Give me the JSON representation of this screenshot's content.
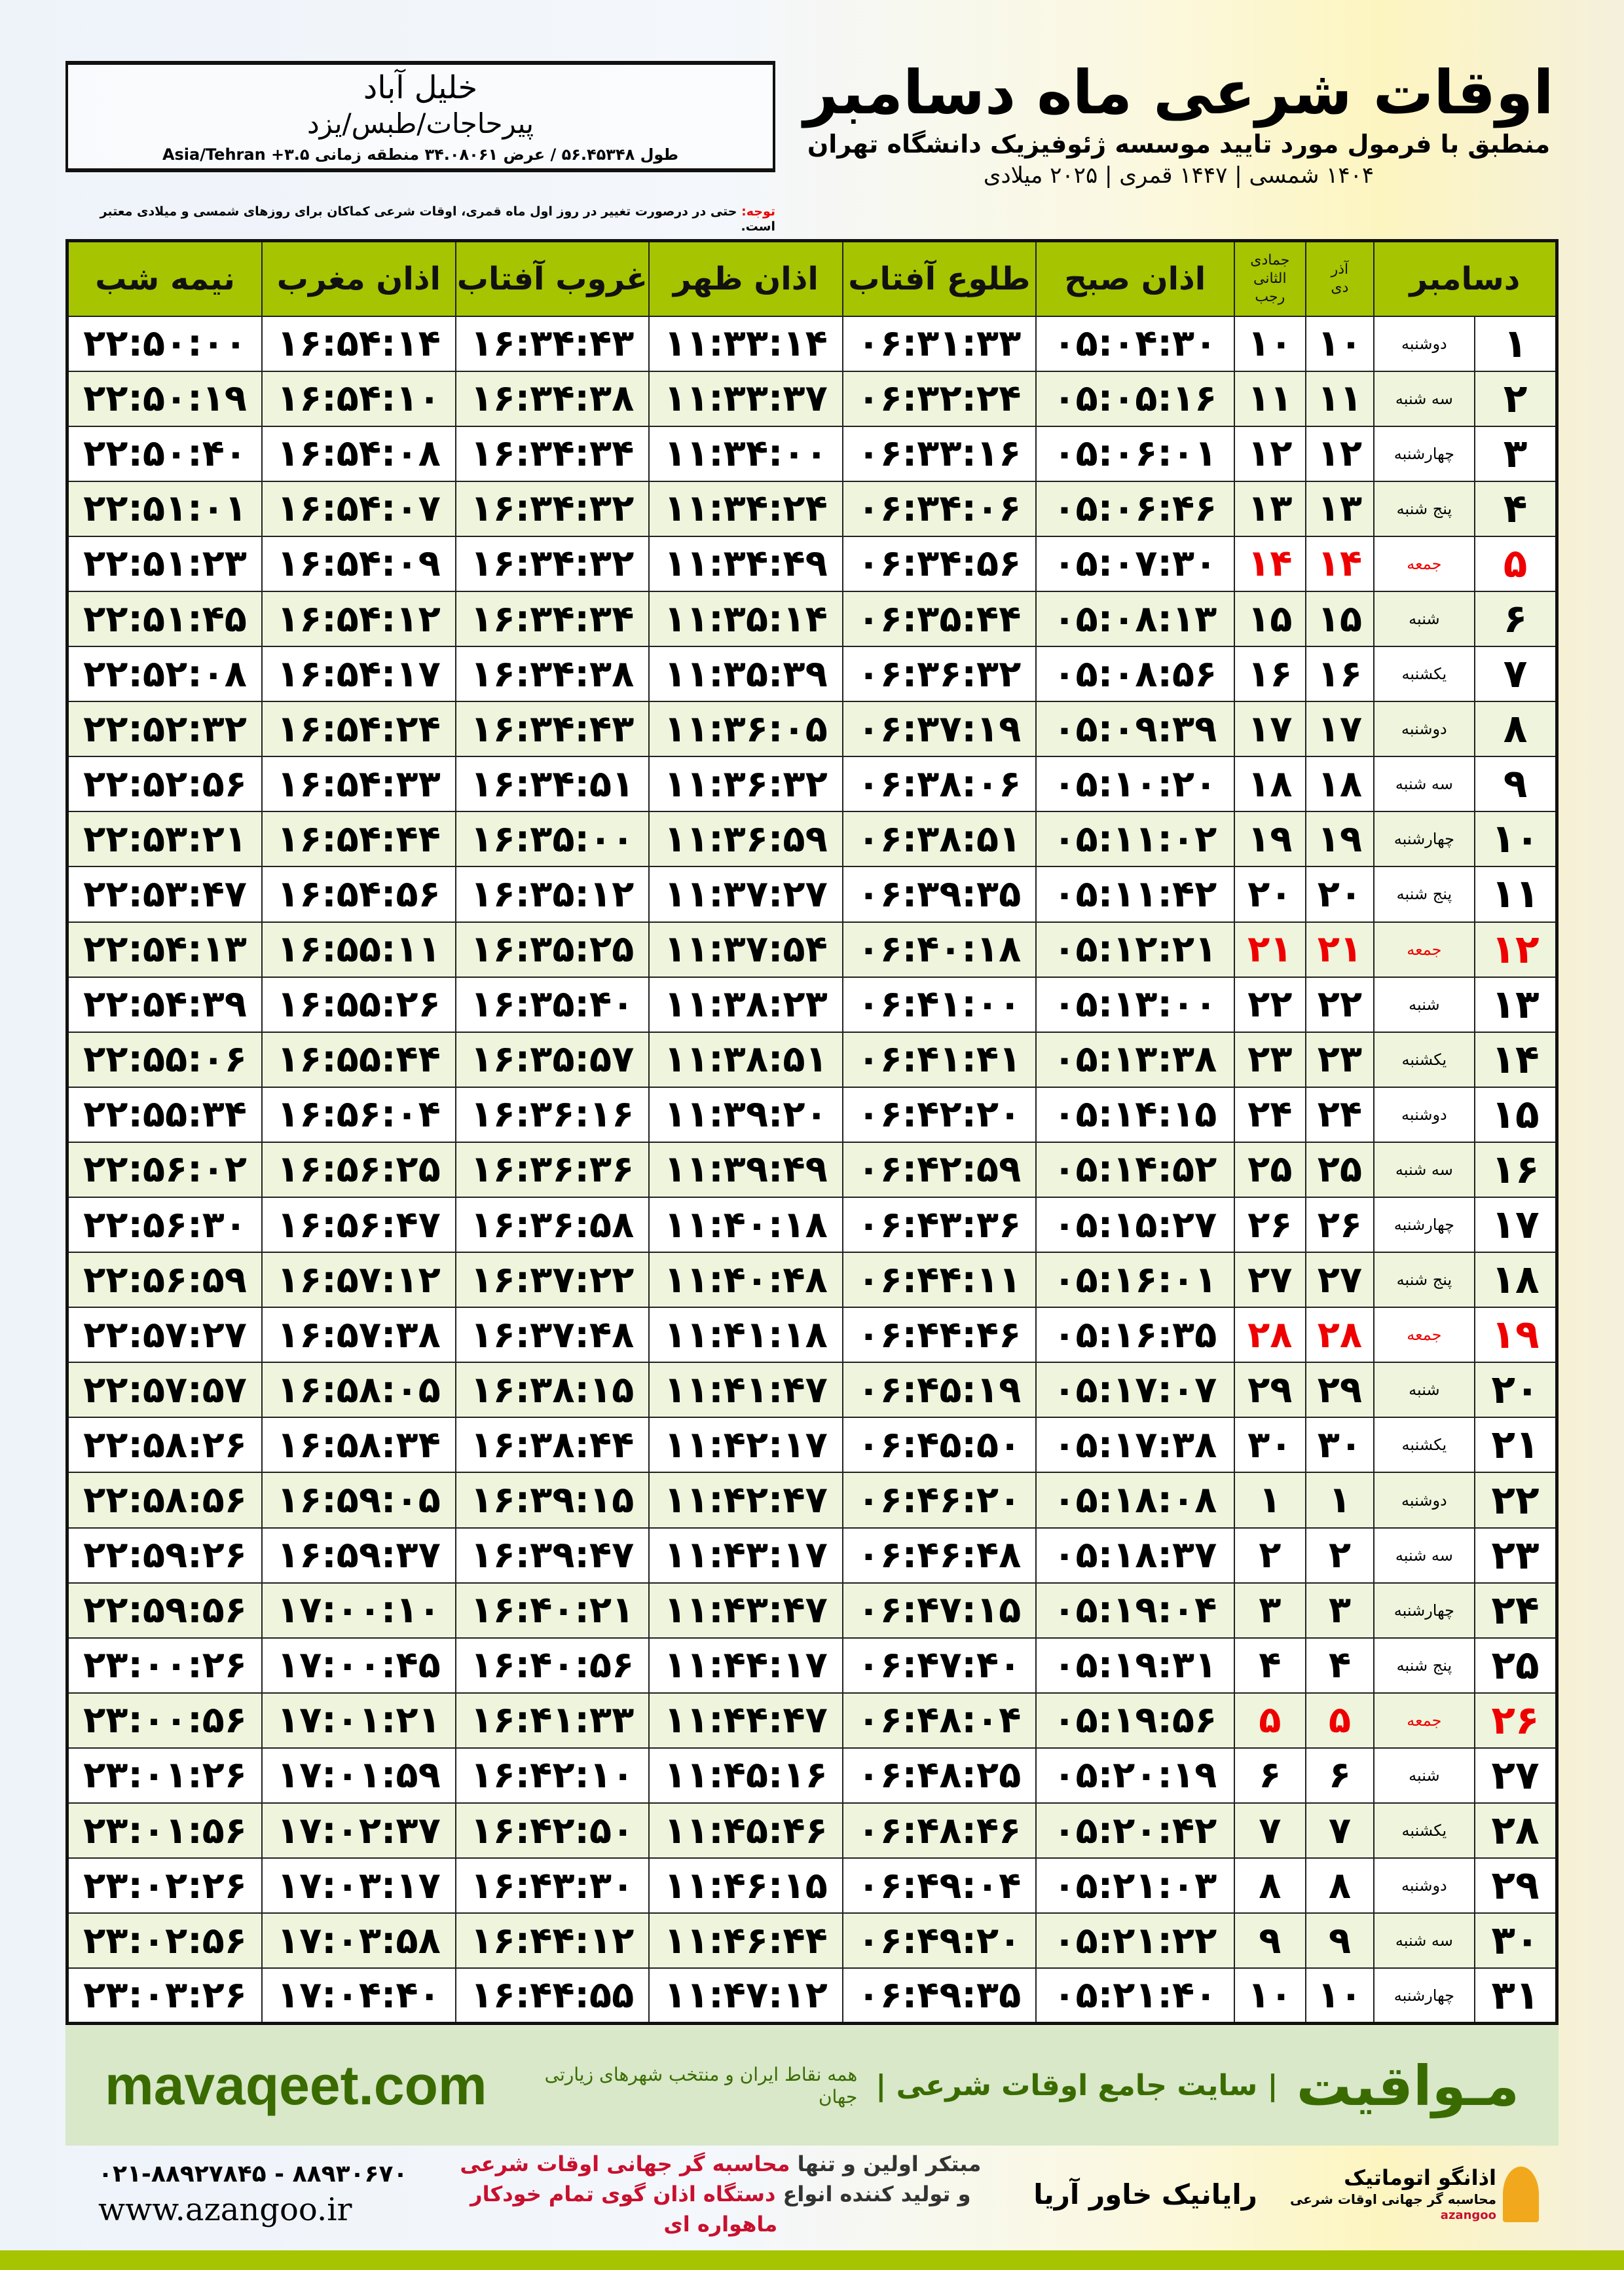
{
  "location": {
    "city": "خلیل آباد",
    "region": "پیرحاجات/طبس/یزد",
    "coords": "طول ۵۶.۴۵۳۴۸ / عرض ۳۴.۰۸۰۶۱ منطقه زمانی ۳.۵+ Asia/Tehran"
  },
  "header": {
    "title": "اوقات شرعی ماه دسامبر",
    "subtitle": "منطبق با فرمول مورد تایید موسسه ژئوفیزیک دانشگاه تهران",
    "years": "۱۴۰۴ شمسی | ۱۴۴۷ قمری | ۲۰۲۵ میلادی"
  },
  "note": {
    "label": "توجه:",
    "text": " حتی در درصورت تغییر در روز اول ماه قمری، اوقات شرعی کماکان برای روزهای شمسی و میلادی معتبر است."
  },
  "columns": {
    "month": "دسامبر",
    "solar_month": "آذر",
    "solar_month2": "دی",
    "lunar_month": "جمادی الثانی",
    "lunar_month2": "رجب",
    "fajr": "اذان صبح",
    "sunrise": "طلوع آفتاب",
    "dhuhr": "اذان ظهر",
    "sunset": "غروب آفتاب",
    "maghrib": "اذان مغرب",
    "midnight": "نیمه شب"
  },
  "colors": {
    "header_green": "#a6c400",
    "friday_red": "#e00000",
    "brand_green": "#3a6b00"
  },
  "rows": [
    [
      "۱",
      "دوشنبه",
      "۱۰",
      "۱۰",
      "۰۵:۰۴:۳۰",
      "۰۶:۳۱:۳۳",
      "۱۱:۳۳:۱۴",
      "۱۶:۳۴:۴۳",
      "۱۶:۵۴:۱۴",
      "۲۲:۵۰:۰۰"
    ],
    [
      "۲",
      "سه شنبه",
      "۱۱",
      "۱۱",
      "۰۵:۰۵:۱۶",
      "۰۶:۳۲:۲۴",
      "۱۱:۳۳:۳۷",
      "۱۶:۳۴:۳۸",
      "۱۶:۵۴:۱۰",
      "۲۲:۵۰:۱۹"
    ],
    [
      "۳",
      "چهارشنبه",
      "۱۲",
      "۱۲",
      "۰۵:۰۶:۰۱",
      "۰۶:۳۳:۱۶",
      "۱۱:۳۴:۰۰",
      "۱۶:۳۴:۳۴",
      "۱۶:۵۴:۰۸",
      "۲۲:۵۰:۴۰"
    ],
    [
      "۴",
      "پنج شنبه",
      "۱۳",
      "۱۳",
      "۰۵:۰۶:۴۶",
      "۰۶:۳۴:۰۶",
      "۱۱:۳۴:۲۴",
      "۱۶:۳۴:۳۲",
      "۱۶:۵۴:۰۷",
      "۲۲:۵۱:۰۱"
    ],
    [
      "۵",
      "جمعه",
      "۱۴",
      "۱۴",
      "۰۵:۰۷:۳۰",
      "۰۶:۳۴:۵۶",
      "۱۱:۳۴:۴۹",
      "۱۶:۳۴:۳۲",
      "۱۶:۵۴:۰۹",
      "۲۲:۵۱:۲۳"
    ],
    [
      "۶",
      "شنبه",
      "۱۵",
      "۱۵",
      "۰۵:۰۸:۱۳",
      "۰۶:۳۵:۴۴",
      "۱۱:۳۵:۱۴",
      "۱۶:۳۴:۳۴",
      "۱۶:۵۴:۱۲",
      "۲۲:۵۱:۴۵"
    ],
    [
      "۷",
      "یکشنبه",
      "۱۶",
      "۱۶",
      "۰۵:۰۸:۵۶",
      "۰۶:۳۶:۳۲",
      "۱۱:۳۵:۳۹",
      "۱۶:۳۴:۳۸",
      "۱۶:۵۴:۱۷",
      "۲۲:۵۲:۰۸"
    ],
    [
      "۸",
      "دوشنبه",
      "۱۷",
      "۱۷",
      "۰۵:۰۹:۳۹",
      "۰۶:۳۷:۱۹",
      "۱۱:۳۶:۰۵",
      "۱۶:۳۴:۴۳",
      "۱۶:۵۴:۲۴",
      "۲۲:۵۲:۳۲"
    ],
    [
      "۹",
      "سه شنبه",
      "۱۸",
      "۱۸",
      "۰۵:۱۰:۲۰",
      "۰۶:۳۸:۰۶",
      "۱۱:۳۶:۳۲",
      "۱۶:۳۴:۵۱",
      "۱۶:۵۴:۳۳",
      "۲۲:۵۲:۵۶"
    ],
    [
      "۱۰",
      "چهارشنبه",
      "۱۹",
      "۱۹",
      "۰۵:۱۱:۰۲",
      "۰۶:۳۸:۵۱",
      "۱۱:۳۶:۵۹",
      "۱۶:۳۵:۰۰",
      "۱۶:۵۴:۴۴",
      "۲۲:۵۳:۲۱"
    ],
    [
      "۱۱",
      "پنج شنبه",
      "۲۰",
      "۲۰",
      "۰۵:۱۱:۴۲",
      "۰۶:۳۹:۳۵",
      "۱۱:۳۷:۲۷",
      "۱۶:۳۵:۱۲",
      "۱۶:۵۴:۵۶",
      "۲۲:۵۳:۴۷"
    ],
    [
      "۱۲",
      "جمعه",
      "۲۱",
      "۲۱",
      "۰۵:۱۲:۲۱",
      "۰۶:۴۰:۱۸",
      "۱۱:۳۷:۵۴",
      "۱۶:۳۵:۲۵",
      "۱۶:۵۵:۱۱",
      "۲۲:۵۴:۱۳"
    ],
    [
      "۱۳",
      "شنبه",
      "۲۲",
      "۲۲",
      "۰۵:۱۳:۰۰",
      "۰۶:۴۱:۰۰",
      "۱۱:۳۸:۲۳",
      "۱۶:۳۵:۴۰",
      "۱۶:۵۵:۲۶",
      "۲۲:۵۴:۳۹"
    ],
    [
      "۱۴",
      "یکشنبه",
      "۲۳",
      "۲۳",
      "۰۵:۱۳:۳۸",
      "۰۶:۴۱:۴۱",
      "۱۱:۳۸:۵۱",
      "۱۶:۳۵:۵۷",
      "۱۶:۵۵:۴۴",
      "۲۲:۵۵:۰۶"
    ],
    [
      "۱۵",
      "دوشنبه",
      "۲۴",
      "۲۴",
      "۰۵:۱۴:۱۵",
      "۰۶:۴۲:۲۰",
      "۱۱:۳۹:۲۰",
      "۱۶:۳۶:۱۶",
      "۱۶:۵۶:۰۴",
      "۲۲:۵۵:۳۴"
    ],
    [
      "۱۶",
      "سه شنبه",
      "۲۵",
      "۲۵",
      "۰۵:۱۴:۵۲",
      "۰۶:۴۲:۵۹",
      "۱۱:۳۹:۴۹",
      "۱۶:۳۶:۳۶",
      "۱۶:۵۶:۲۵",
      "۲۲:۵۶:۰۲"
    ],
    [
      "۱۷",
      "چهارشنبه",
      "۲۶",
      "۲۶",
      "۰۵:۱۵:۲۷",
      "۰۶:۴۳:۳۶",
      "۱۱:۴۰:۱۸",
      "۱۶:۳۶:۵۸",
      "۱۶:۵۶:۴۷",
      "۲۲:۵۶:۳۰"
    ],
    [
      "۱۸",
      "پنج شنبه",
      "۲۷",
      "۲۷",
      "۰۵:۱۶:۰۱",
      "۰۶:۴۴:۱۱",
      "۱۱:۴۰:۴۸",
      "۱۶:۳۷:۲۲",
      "۱۶:۵۷:۱۲",
      "۲۲:۵۶:۵۹"
    ],
    [
      "۱۹",
      "جمعه",
      "۲۸",
      "۲۸",
      "۰۵:۱۶:۳۵",
      "۰۶:۴۴:۴۶",
      "۱۱:۴۱:۱۸",
      "۱۶:۳۷:۴۸",
      "۱۶:۵۷:۳۸",
      "۲۲:۵۷:۲۷"
    ],
    [
      "۲۰",
      "شنبه",
      "۲۹",
      "۲۹",
      "۰۵:۱۷:۰۷",
      "۰۶:۴۵:۱۹",
      "۱۱:۴۱:۴۷",
      "۱۶:۳۸:۱۵",
      "۱۶:۵۸:۰۵",
      "۲۲:۵۷:۵۷"
    ],
    [
      "۲۱",
      "یکشنبه",
      "۳۰",
      "۳۰",
      "۰۵:۱۷:۳۸",
      "۰۶:۴۵:۵۰",
      "۱۱:۴۲:۱۷",
      "۱۶:۳۸:۴۴",
      "۱۶:۵۸:۳۴",
      "۲۲:۵۸:۲۶"
    ],
    [
      "۲۲",
      "دوشنبه",
      "۱",
      "۱",
      "۰۵:۱۸:۰۸",
      "۰۶:۴۶:۲۰",
      "۱۱:۴۲:۴۷",
      "۱۶:۳۹:۱۵",
      "۱۶:۵۹:۰۵",
      "۲۲:۵۸:۵۶"
    ],
    [
      "۲۳",
      "سه شنبه",
      "۲",
      "۲",
      "۰۵:۱۸:۳۷",
      "۰۶:۴۶:۴۸",
      "۱۱:۴۳:۱۷",
      "۱۶:۳۹:۴۷",
      "۱۶:۵۹:۳۷",
      "۲۲:۵۹:۲۶"
    ],
    [
      "۲۴",
      "چهارشنبه",
      "۳",
      "۳",
      "۰۵:۱۹:۰۴",
      "۰۶:۴۷:۱۵",
      "۱۱:۴۳:۴۷",
      "۱۶:۴۰:۲۱",
      "۱۷:۰۰:۱۰",
      "۲۲:۵۹:۵۶"
    ],
    [
      "۲۵",
      "پنج شنبه",
      "۴",
      "۴",
      "۰۵:۱۹:۳۱",
      "۰۶:۴۷:۴۰",
      "۱۱:۴۴:۱۷",
      "۱۶:۴۰:۵۶",
      "۱۷:۰۰:۴۵",
      "۲۳:۰۰:۲۶"
    ],
    [
      "۲۶",
      "جمعه",
      "۵",
      "۵",
      "۰۵:۱۹:۵۶",
      "۰۶:۴۸:۰۴",
      "۱۱:۴۴:۴۷",
      "۱۶:۴۱:۳۳",
      "۱۷:۰۱:۲۱",
      "۲۳:۰۰:۵۶"
    ],
    [
      "۲۷",
      "شنبه",
      "۶",
      "۶",
      "۰۵:۲۰:۱۹",
      "۰۶:۴۸:۲۵",
      "۱۱:۴۵:۱۶",
      "۱۶:۴۲:۱۰",
      "۱۷:۰۱:۵۹",
      "۲۳:۰۱:۲۶"
    ],
    [
      "۲۸",
      "یکشنبه",
      "۷",
      "۷",
      "۰۵:۲۰:۴۲",
      "۰۶:۴۸:۴۶",
      "۱۱:۴۵:۴۶",
      "۱۶:۴۲:۵۰",
      "۱۷:۰۲:۳۷",
      "۲۳:۰۱:۵۶"
    ],
    [
      "۲۹",
      "دوشنبه",
      "۸",
      "۸",
      "۰۵:۲۱:۰۳",
      "۰۶:۴۹:۰۴",
      "۱۱:۴۶:۱۵",
      "۱۶:۴۳:۳۰",
      "۱۷:۰۳:۱۷",
      "۲۳:۰۲:۲۶"
    ],
    [
      "۳۰",
      "سه شنبه",
      "۹",
      "۹",
      "۰۵:۲۱:۲۲",
      "۰۶:۴۹:۲۰",
      "۱۱:۴۶:۴۴",
      "۱۶:۴۴:۱۲",
      "۱۷:۰۳:۵۸",
      "۲۳:۰۲:۵۶"
    ],
    [
      "۳۱",
      "چهارشنبه",
      "۱۰",
      "۱۰",
      "۰۵:۲۱:۴۰",
      "۰۶:۴۹:۳۵",
      "۱۱:۴۷:۱۲",
      "۱۶:۴۴:۵۵",
      "۱۷:۰۴:۴۰",
      "۲۳:۰۳:۲۶"
    ]
  ],
  "footer": {
    "brand": "مـواقیت",
    "tagline": "| سایت جامع اوقات شرعی |",
    "tagline2": "همه نقاط ایران و منتخب شهرهای زیارتی جهان",
    "site": "mavaqeet.com"
  },
  "ads": {
    "phone": "۰۲۱-۸۸۹۲۷۸۴۵ - ۸۸۹۳۰۶۷۰",
    "website": "www.azangoo.ir",
    "line1_a": "مبتکر اولین و تنها ",
    "line1_b": "محاسبه گر جهانی اوقات شرعی",
    "line2_a": "و تولید کننده انواع ",
    "line2_b": "دستگاه اذان گوی تمام خودکار ماهواره ای",
    "logo_rayanik": "رایانیک خاور آریا",
    "logo_azangoo": "اذانگو اتوماتیک",
    "logo_azangoo_sub": "محاسبه گر جهانی اوقات شرعی",
    "logo_azangoo_latin": "azangoo"
  }
}
